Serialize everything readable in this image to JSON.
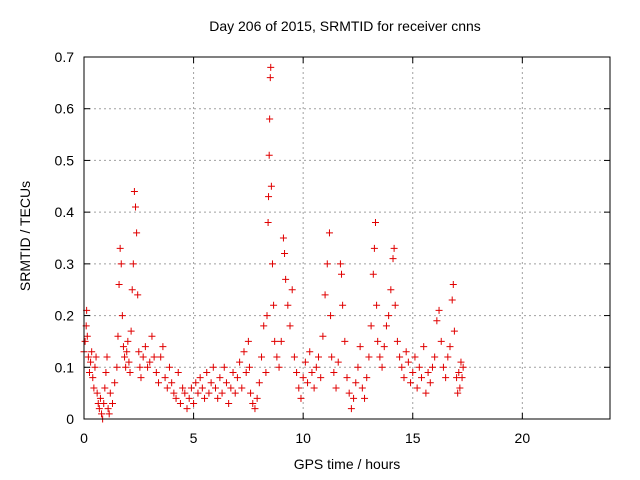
{
  "chart_data": {
    "type": "scatter",
    "title": "Day 206 of 2015, SRMTID for receiver cnns",
    "xlabel": "GPS time / hours",
    "ylabel": "SRMTID / TECUs",
    "xlim": [
      0,
      24
    ],
    "ylim": [
      0,
      0.7
    ],
    "xticks": [
      0,
      5,
      10,
      15,
      20
    ],
    "yticks": [
      0,
      0.1,
      0.2,
      0.3,
      0.4,
      0.5,
      0.6,
      0.7
    ],
    "ytick_labels": [
      "0",
      "0.1",
      "0.2",
      "0.3",
      "0.4",
      "0.5",
      "0.6",
      "0.7"
    ],
    "grid": true,
    "marker": "plus",
    "color": "#e00000",
    "series": [
      {
        "name": "",
        "points": [
          [
            0.0,
            0.13
          ],
          [
            0.05,
            0.15
          ],
          [
            0.1,
            0.18
          ],
          [
            0.12,
            0.21
          ],
          [
            0.15,
            0.16
          ],
          [
            0.2,
            0.12
          ],
          [
            0.25,
            0.09
          ],
          [
            0.3,
            0.11
          ],
          [
            0.35,
            0.13
          ],
          [
            0.4,
            0.08
          ],
          [
            0.45,
            0.06
          ],
          [
            0.5,
            0.1
          ],
          [
            0.55,
            0.12
          ],
          [
            0.6,
            0.05
          ],
          [
            0.65,
            0.03
          ],
          [
            0.7,
            0.02
          ],
          [
            0.75,
            0.04
          ],
          [
            0.8,
            0.01
          ],
          [
            0.85,
            0.0
          ],
          [
            0.9,
            0.03
          ],
          [
            0.95,
            0.06
          ],
          [
            1.0,
            0.09
          ],
          [
            1.05,
            0.12
          ],
          [
            1.1,
            0.02
          ],
          [
            1.15,
            0.01
          ],
          [
            1.2,
            0.05
          ],
          [
            1.3,
            0.03
          ],
          [
            1.4,
            0.07
          ],
          [
            1.5,
            0.1
          ],
          [
            1.55,
            0.16
          ],
          [
            1.6,
            0.26
          ],
          [
            1.65,
            0.33
          ],
          [
            1.7,
            0.3
          ],
          [
            1.75,
            0.2
          ],
          [
            1.8,
            0.14
          ],
          [
            1.85,
            0.12
          ],
          [
            1.9,
            0.1
          ],
          [
            1.95,
            0.13
          ],
          [
            2.0,
            0.15
          ],
          [
            2.05,
            0.11
          ],
          [
            2.1,
            0.09
          ],
          [
            2.15,
            0.17
          ],
          [
            2.2,
            0.25
          ],
          [
            2.25,
            0.3
          ],
          [
            2.3,
            0.44
          ],
          [
            2.35,
            0.41
          ],
          [
            2.4,
            0.36
          ],
          [
            2.45,
            0.24
          ],
          [
            2.5,
            0.13
          ],
          [
            2.55,
            0.1
          ],
          [
            2.6,
            0.08
          ],
          [
            2.7,
            0.12
          ],
          [
            2.8,
            0.14
          ],
          [
            2.9,
            0.1
          ],
          [
            3.0,
            0.11
          ],
          [
            3.1,
            0.16
          ],
          [
            3.2,
            0.12
          ],
          [
            3.3,
            0.09
          ],
          [
            3.4,
            0.07
          ],
          [
            3.5,
            0.12
          ],
          [
            3.6,
            0.14
          ],
          [
            3.7,
            0.08
          ],
          [
            3.8,
            0.06
          ],
          [
            3.9,
            0.1
          ],
          [
            4.0,
            0.07
          ],
          [
            4.1,
            0.05
          ],
          [
            4.2,
            0.04
          ],
          [
            4.3,
            0.09
          ],
          [
            4.4,
            0.03
          ],
          [
            4.5,
            0.06
          ],
          [
            4.6,
            0.05
          ],
          [
            4.7,
            0.02
          ],
          [
            4.8,
            0.04
          ],
          [
            4.9,
            0.06
          ],
          [
            5.0,
            0.03
          ],
          [
            5.1,
            0.07
          ],
          [
            5.2,
            0.05
          ],
          [
            5.3,
            0.08
          ],
          [
            5.4,
            0.06
          ],
          [
            5.5,
            0.04
          ],
          [
            5.6,
            0.09
          ],
          [
            5.7,
            0.05
          ],
          [
            5.8,
            0.07
          ],
          [
            5.9,
            0.1
          ],
          [
            6.0,
            0.06
          ],
          [
            6.1,
            0.04
          ],
          [
            6.2,
            0.08
          ],
          [
            6.3,
            0.05
          ],
          [
            6.4,
            0.1
          ],
          [
            6.5,
            0.07
          ],
          [
            6.6,
            0.03
          ],
          [
            6.7,
            0.06
          ],
          [
            6.8,
            0.09
          ],
          [
            6.9,
            0.05
          ],
          [
            7.0,
            0.08
          ],
          [
            7.1,
            0.11
          ],
          [
            7.2,
            0.06
          ],
          [
            7.3,
            0.13
          ],
          [
            7.4,
            0.09
          ],
          [
            7.5,
            0.15
          ],
          [
            7.55,
            0.1
          ],
          [
            7.6,
            0.05
          ],
          [
            7.7,
            0.03
          ],
          [
            7.8,
            0.02
          ],
          [
            7.9,
            0.04
          ],
          [
            8.0,
            0.07
          ],
          [
            8.1,
            0.12
          ],
          [
            8.2,
            0.18
          ],
          [
            8.3,
            0.09
          ],
          [
            8.35,
            0.2
          ],
          [
            8.4,
            0.38
          ],
          [
            8.42,
            0.43
          ],
          [
            8.45,
            0.51
          ],
          [
            8.47,
            0.58
          ],
          [
            8.5,
            0.66
          ],
          [
            8.52,
            0.68
          ],
          [
            8.55,
            0.45
          ],
          [
            8.6,
            0.3
          ],
          [
            8.65,
            0.22
          ],
          [
            8.7,
            0.15
          ],
          [
            8.8,
            0.12
          ],
          [
            8.9,
            0.1
          ],
          [
            9.0,
            0.15
          ],
          [
            9.1,
            0.35
          ],
          [
            9.15,
            0.32
          ],
          [
            9.2,
            0.27
          ],
          [
            9.3,
            0.22
          ],
          [
            9.4,
            0.18
          ],
          [
            9.5,
            0.25
          ],
          [
            9.6,
            0.12
          ],
          [
            9.7,
            0.09
          ],
          [
            9.8,
            0.06
          ],
          [
            9.9,
            0.04
          ],
          [
            10.0,
            0.08
          ],
          [
            10.1,
            0.11
          ],
          [
            10.2,
            0.07
          ],
          [
            10.3,
            0.13
          ],
          [
            10.4,
            0.09
          ],
          [
            10.5,
            0.06
          ],
          [
            10.6,
            0.1
          ],
          [
            10.7,
            0.12
          ],
          [
            10.8,
            0.08
          ],
          [
            10.9,
            0.16
          ],
          [
            11.0,
            0.24
          ],
          [
            11.1,
            0.3
          ],
          [
            11.2,
            0.36
          ],
          [
            11.25,
            0.2
          ],
          [
            11.3,
            0.12
          ],
          [
            11.4,
            0.09
          ],
          [
            11.5,
            0.06
          ],
          [
            11.6,
            0.11
          ],
          [
            11.7,
            0.3
          ],
          [
            11.75,
            0.28
          ],
          [
            11.8,
            0.22
          ],
          [
            11.9,
            0.15
          ],
          [
            12.0,
            0.08
          ],
          [
            12.1,
            0.05
          ],
          [
            12.2,
            0.02
          ],
          [
            12.3,
            0.04
          ],
          [
            12.4,
            0.07
          ],
          [
            12.5,
            0.1
          ],
          [
            12.6,
            0.14
          ],
          [
            12.7,
            0.06
          ],
          [
            12.8,
            0.04
          ],
          [
            12.9,
            0.08
          ],
          [
            13.0,
            0.12
          ],
          [
            13.1,
            0.18
          ],
          [
            13.2,
            0.28
          ],
          [
            13.25,
            0.33
          ],
          [
            13.3,
            0.38
          ],
          [
            13.35,
            0.22
          ],
          [
            13.4,
            0.15
          ],
          [
            13.5,
            0.12
          ],
          [
            13.6,
            0.1
          ],
          [
            13.7,
            0.14
          ],
          [
            13.8,
            0.18
          ],
          [
            13.9,
            0.2
          ],
          [
            14.0,
            0.25
          ],
          [
            14.1,
            0.31
          ],
          [
            14.15,
            0.33
          ],
          [
            14.2,
            0.22
          ],
          [
            14.3,
            0.15
          ],
          [
            14.4,
            0.12
          ],
          [
            14.5,
            0.1
          ],
          [
            14.6,
            0.08
          ],
          [
            14.7,
            0.13
          ],
          [
            14.8,
            0.11
          ],
          [
            14.9,
            0.07
          ],
          [
            15.0,
            0.09
          ],
          [
            15.1,
            0.12
          ],
          [
            15.2,
            0.06
          ],
          [
            15.3,
            0.1
          ],
          [
            15.4,
            0.08
          ],
          [
            15.5,
            0.14
          ],
          [
            15.6,
            0.05
          ],
          [
            15.7,
            0.09
          ],
          [
            15.8,
            0.07
          ],
          [
            15.9,
            0.1
          ],
          [
            16.0,
            0.12
          ],
          [
            16.1,
            0.19
          ],
          [
            16.2,
            0.21
          ],
          [
            16.3,
            0.15
          ],
          [
            16.4,
            0.1
          ],
          [
            16.5,
            0.08
          ],
          [
            16.6,
            0.12
          ],
          [
            16.7,
            0.14
          ],
          [
            16.8,
            0.23
          ],
          [
            16.85,
            0.26
          ],
          [
            16.9,
            0.17
          ],
          [
            17.0,
            0.08
          ],
          [
            17.05,
            0.05
          ],
          [
            17.1,
            0.09
          ],
          [
            17.15,
            0.06
          ],
          [
            17.2,
            0.11
          ],
          [
            17.25,
            0.08
          ],
          [
            17.3,
            0.1
          ]
        ]
      }
    ]
  }
}
